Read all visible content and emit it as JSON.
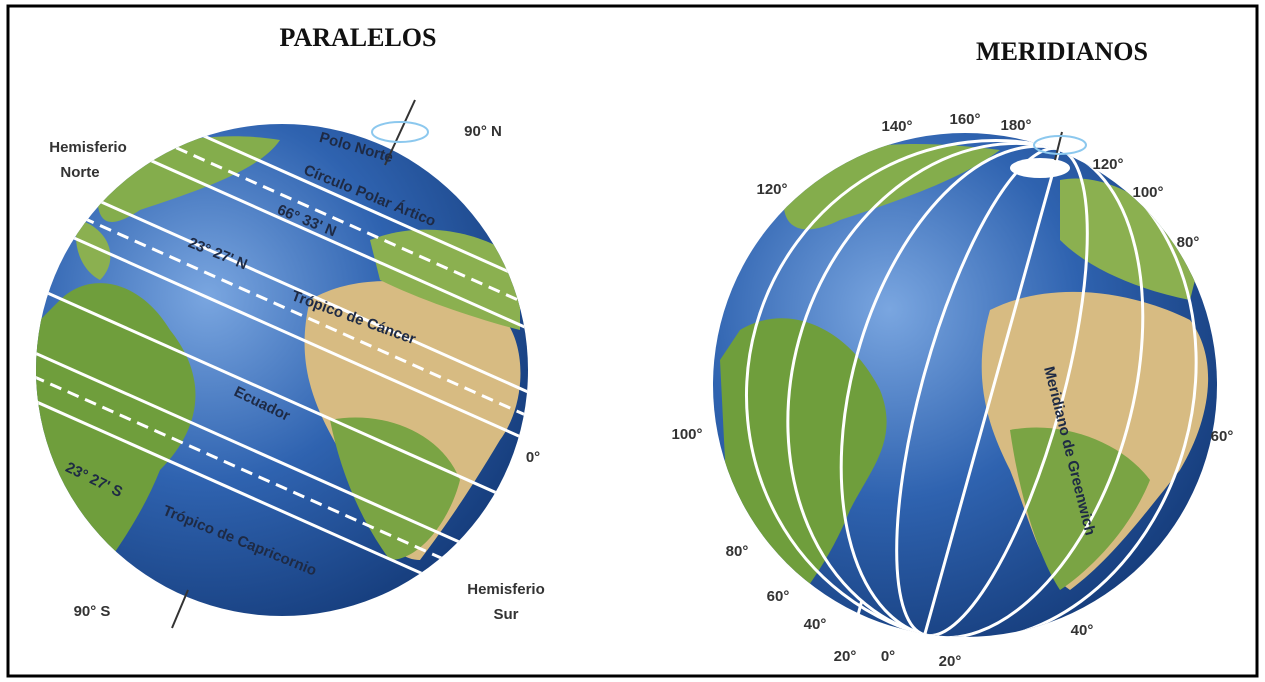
{
  "paralelos": {
    "title": "PARALELOS",
    "labels": {
      "hemisferio_norte": [
        "Hemisferio",
        "Norte"
      ],
      "polo_norte_grados": "90° N",
      "polo_norte": "Polo Norte",
      "circulo_polar": "Círculo Polar Ártico",
      "lat_66": "66° 33' N",
      "lat_23n": "23° 27' N",
      "tropico_cancer": "Trópico de Cáncer",
      "ecuador": "Ecuador",
      "ecuador_grados": "0°",
      "lat_23s": "23° 27' S",
      "tropico_capricornio": "Trópico de Capricornio",
      "polo_sur_grados": "90° S",
      "hemisferio_sur": [
        "Hemisferio",
        "Sur"
      ]
    }
  },
  "meridianos": {
    "title": "MERIDIANOS",
    "labels": [
      "140°",
      "160°",
      "180°",
      "120°",
      "120°",
      "100°",
      "80°",
      "60°",
      "40°",
      "20°",
      "0°",
      "20°",
      "40°",
      "60°",
      "80°",
      "100°"
    ],
    "greenwich": "Meridiano de Greenwich"
  }
}
